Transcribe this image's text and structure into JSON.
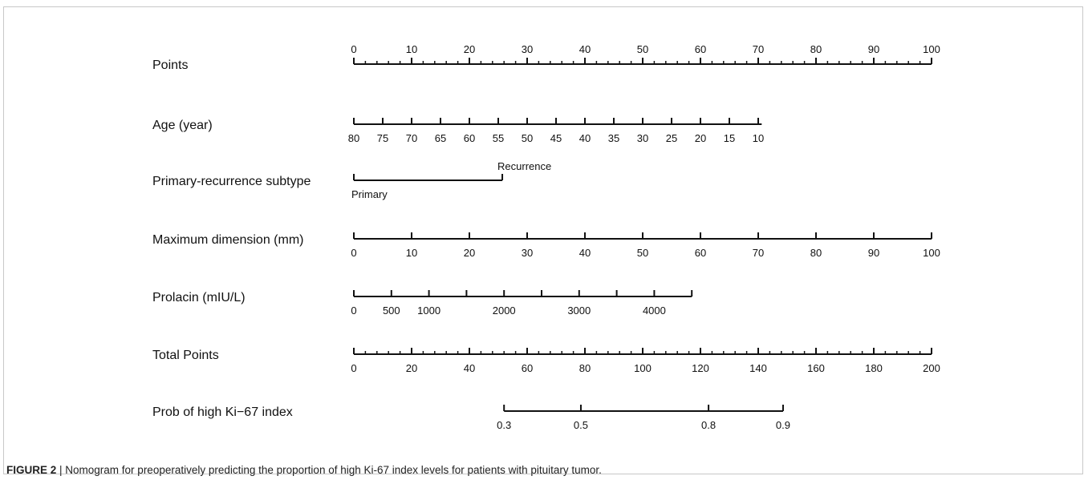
{
  "caption": {
    "figure_label": "FIGURE 2",
    "separator": " | ",
    "text": "Nomogram for preoperatively predicting the proportion of high Ki-67 index levels for patients with pituitary tumor."
  },
  "chart_data": {
    "type": "nomogram",
    "points_scale": [
      0,
      100
    ],
    "rows": [
      {
        "name": "Points",
        "range": [
          0,
          100
        ],
        "labels_position": "above",
        "ticks": [
          0,
          10,
          20,
          30,
          40,
          50,
          60,
          70,
          80,
          90,
          100
        ],
        "tick_labels": [
          "0",
          "10",
          "20",
          "30",
          "40",
          "50",
          "60",
          "70",
          "80",
          "90",
          "100"
        ],
        "minor_ticks": [
          2,
          4,
          6,
          8,
          12,
          14,
          16,
          18,
          22,
          24,
          26,
          28,
          32,
          34,
          36,
          38,
          42,
          44,
          46,
          48,
          52,
          54,
          56,
          58,
          62,
          64,
          66,
          68,
          72,
          74,
          76,
          78,
          82,
          84,
          86,
          88,
          92,
          94,
          96,
          98
        ]
      },
      {
        "name": "Age (year)",
        "range": [
          0,
          70.6
        ],
        "labels_position": "below",
        "ticks": [
          0,
          5,
          10,
          15,
          20,
          25,
          30,
          35,
          40,
          45,
          50,
          55,
          60,
          65,
          70
        ],
        "tick_labels": [
          "80",
          "75",
          "70",
          "65",
          "60",
          "55",
          "50",
          "45",
          "40",
          "35",
          "30",
          "25",
          "20",
          "15",
          "10"
        ]
      },
      {
        "name": "Primary-recurrence subtype",
        "range": [
          0,
          25.7
        ],
        "labels_position": "mixed",
        "ticks": [
          0,
          25.7
        ],
        "tick_labels": [
          "Primary",
          "Recurrence"
        ],
        "tick_label_sides": [
          "below",
          "above"
        ]
      },
      {
        "name": "Maximum dimension (mm)",
        "range": [
          0,
          100
        ],
        "labels_position": "below",
        "ticks": [
          0,
          10,
          20,
          30,
          40,
          50,
          60,
          70,
          80,
          90,
          100
        ],
        "tick_labels": [
          "0",
          "10",
          "20",
          "30",
          "40",
          "50",
          "60",
          "70",
          "80",
          "90",
          "100"
        ]
      },
      {
        "name": "Prolacin (mIU/L)",
        "range": [
          0,
          58.5
        ],
        "labels_position": "below",
        "ticks": [
          0,
          6.5,
          13,
          19.5,
          26,
          32.5,
          39,
          45.5,
          52,
          58.5
        ],
        "tick_labels": [
          "0",
          "500",
          "1000",
          "",
          "2000",
          "",
          "3000",
          "",
          "4000",
          ""
        ]
      },
      {
        "name": "Total Points",
        "range": [
          0,
          100
        ],
        "labels_position": "below",
        "ticks": [
          0,
          10,
          20,
          30,
          40,
          50,
          60,
          70,
          80,
          90,
          100
        ],
        "tick_labels": [
          "0",
          "20",
          "40",
          "60",
          "80",
          "100",
          "120",
          "140",
          "160",
          "180",
          "200"
        ],
        "minor_ticks": [
          2,
          4,
          6,
          8,
          12,
          14,
          16,
          18,
          22,
          24,
          26,
          28,
          32,
          34,
          36,
          38,
          42,
          44,
          46,
          48,
          52,
          54,
          56,
          58,
          62,
          64,
          66,
          68,
          72,
          74,
          76,
          78,
          82,
          84,
          86,
          88,
          92,
          94,
          96,
          98
        ]
      },
      {
        "name": "Prob of high Ki−67 index",
        "range": [
          26,
          74.3
        ],
        "labels_position": "below",
        "ticks": [
          26,
          39.3,
          61.4,
          74.3
        ],
        "tick_labels": [
          "0.3",
          "0.5",
          "0.8",
          "0.9"
        ]
      }
    ]
  }
}
